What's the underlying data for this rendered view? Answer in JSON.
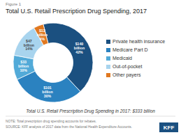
{
  "chart_data": {
    "type": "pie",
    "title": "Total U.S. Retail Prescription Drug Spending, 2017",
    "subtitle": "Total U.S. Retail Prescription Drug Spending in 2017: $333 billion",
    "annotations": [
      "Figure 1",
      "NOTE: Total prescription drug spending accounts for rebates.",
      "SOURCE: KFF analysis of 2017 data from the National Health Expenditure Accounts.",
      "KFF"
    ],
    "categories": [
      "Private health insurance",
      "Medicare Part D",
      "Medicaid",
      "Out-of-pocket",
      "Other payers"
    ],
    "values": [
      42,
      30,
      10,
      14,
      4
    ],
    "value_labels": [
      "$140\nbillion\n42%",
      "$101\nbillion\n30%",
      "$33\nbillion\n10%",
      "$47\nbillion\n14%",
      "$13\nbillion\n4%"
    ],
    "colors": [
      "#1b5080",
      "#2b82c0",
      "#52aad8",
      "#a8d4ee",
      "#e07820"
    ],
    "data_labels": true,
    "legend": "right"
  }
}
